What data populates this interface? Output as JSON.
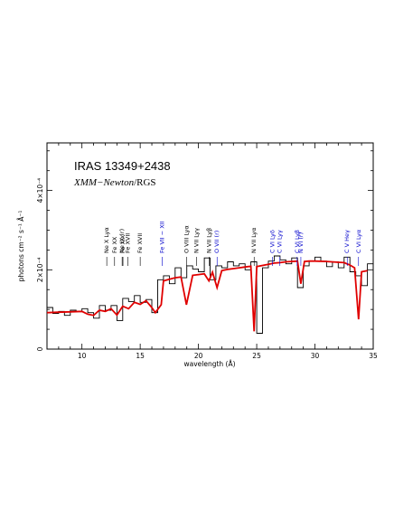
{
  "chart_data": {
    "type": "line",
    "title": "IRAS 13349+2438",
    "subtitle_italic": "XMM−Newton",
    "subtitle_rest": "/RGS",
    "xlabel": "wavelength (Å)",
    "ylabel": "photons cm⁻² s⁻¹ Å⁻¹",
    "xlim": [
      7,
      35
    ],
    "ylim": [
      0,
      0.00052
    ],
    "x_ticks": [
      10,
      15,
      20,
      25,
      30,
      35
    ],
    "y_ticks": [
      {
        "value": 0,
        "label": "0"
      },
      {
        "value": 0.0002,
        "label": "2×10⁻⁴"
      },
      {
        "value": 0.0004,
        "label": "4×10⁻⁴"
      }
    ],
    "grid": false,
    "series": [
      {
        "color": "#000000",
        "style": "histogram",
        "x": [
          7.0,
          7.5,
          8.0,
          8.5,
          9.0,
          9.5,
          10.0,
          10.5,
          11.0,
          11.5,
          12.0,
          12.5,
          13.0,
          13.5,
          14.0,
          14.5,
          15.0,
          15.5,
          16.0,
          16.5,
          17.0,
          17.5,
          18.0,
          18.5,
          19.0,
          19.5,
          20.0,
          20.5,
          21.0,
          21.5,
          22.0,
          22.5,
          23.0,
          23.5,
          24.0,
          24.5,
          25.0,
          25.5,
          26.0,
          26.5,
          27.0,
          27.5,
          28.0,
          28.5,
          29.0,
          29.5,
          30.0,
          30.5,
          31.0,
          31.5,
          32.0,
          32.5,
          33.0,
          33.5,
          34.0,
          34.5
        ],
        "y": [
          0.000105,
          9e-05,
          9.5e-05,
          8.5e-05,
          9.8e-05,
          9.5e-05,
          0.000102,
          9.2e-05,
          7.8e-05,
          0.00011,
          9.8e-05,
          0.00011,
          7.2e-05,
          0.000128,
          0.00012,
          0.000135,
          0.000118,
          0.000125,
          9.2e-05,
          0.000175,
          0.000185,
          0.000165,
          0.000205,
          0.00018,
          0.00021,
          0.000202,
          0.000195,
          0.00023,
          0.000175,
          0.00021,
          0.000205,
          0.00022,
          0.00021,
          0.000215,
          0.0002,
          0.00022,
          4e-05,
          0.000205,
          0.000222,
          0.000235,
          0.000225,
          0.000215,
          0.00023,
          0.000155,
          0.00021,
          0.000222,
          0.000232,
          0.000222,
          0.000208,
          0.00022,
          0.000205,
          0.000232,
          0.000195,
          0.000185,
          0.00016,
          0.000215
        ]
      },
      {
        "color": "#e00000",
        "style": "line",
        "x": [
          7.0,
          8.0,
          9.0,
          10.0,
          10.5,
          11.0,
          11.5,
          12.0,
          12.5,
          13.0,
          13.5,
          14.0,
          14.5,
          15.0,
          15.5,
          16.0,
          16.3,
          16.8,
          17.0,
          17.5,
          18.0,
          18.5,
          18.97,
          19.5,
          20.0,
          20.5,
          20.9,
          21.2,
          21.6,
          22.0,
          22.5,
          23.0,
          23.5,
          24.0,
          24.5,
          24.78,
          25.0,
          25.5,
          26.0,
          26.5,
          27.0,
          27.5,
          28.0,
          28.5,
          28.79,
          29.1,
          29.5,
          30.0,
          31.0,
          32.0,
          32.5,
          33.0,
          33.4,
          33.74,
          34.0,
          34.5
        ],
        "y": [
          9.2e-05,
          9.3e-05,
          9.4e-05,
          9.5e-05,
          8.8e-05,
          8.5e-05,
          9.8e-05,
          9.5e-05,
          0.000102,
          8.6e-05,
          0.000108,
          0.000102,
          0.000118,
          0.000113,
          0.000122,
          0.000105,
          9.2e-05,
          0.000112,
          0.000172,
          0.000176,
          0.00018,
          0.000182,
          0.000112,
          0.000186,
          0.000188,
          0.00019,
          0.000172,
          0.000194,
          0.000155,
          0.000198,
          0.000201,
          0.000203,
          0.000205,
          0.000207,
          0.000209,
          4.5e-05,
          0.000208,
          0.000211,
          0.000214,
          0.000217,
          0.000218,
          0.00022,
          0.000221,
          0.000222,
          0.000165,
          0.000221,
          0.000222,
          0.000222,
          0.000221,
          0.000219,
          0.000218,
          0.000212,
          0.000205,
          7.5e-05,
          0.000195,
          0.000198
        ]
      }
    ],
    "annotations": [
      {
        "text": "Ne X Lyα",
        "x": 12.13,
        "color": "#000000"
      },
      {
        "text": "Fe XX",
        "x": 12.8,
        "color": "#000000"
      },
      {
        "text": "Ne IX (r)",
        "x": 13.45,
        "color": "#000000"
      },
      {
        "text": "Fe XVII",
        "x": 13.95,
        "color": "#000000"
      },
      {
        "text": "Fe XIX",
        "x": 13.52,
        "color": "#000000"
      },
      {
        "text": "Fe XVII",
        "x": 15.0,
        "color": "#000000"
      },
      {
        "text": "Fe VII − XII",
        "x": 16.9,
        "color": "#0000cc"
      },
      {
        "text": "O VIII Lyα",
        "x": 18.97,
        "color": "#000000"
      },
      {
        "text": "N VII Lyγ",
        "x": 19.83,
        "color": "#000000"
      },
      {
        "text": "N VII Lyβ",
        "x": 20.91,
        "color": "#000000"
      },
      {
        "text": "O VII (r)",
        "x": 21.6,
        "color": "#0000cc"
      },
      {
        "text": "N VII Lyα",
        "x": 24.78,
        "color": "#000000"
      },
      {
        "text": "C VI Lyδ",
        "x": 26.36,
        "color": "#0000cc"
      },
      {
        "text": "C VI Lyγ",
        "x": 26.99,
        "color": "#0000cc"
      },
      {
        "text": "C VI Lyβ",
        "x": 28.47,
        "color": "#0000cc"
      },
      {
        "text": "N VI (r)",
        "x": 28.79,
        "color": "#0000cc"
      },
      {
        "text": "C V Heγ",
        "x": 32.77,
        "color": "#0000cc"
      },
      {
        "text": "C VI Lyα",
        "x": 33.74,
        "color": "#0000cc"
      }
    ]
  }
}
